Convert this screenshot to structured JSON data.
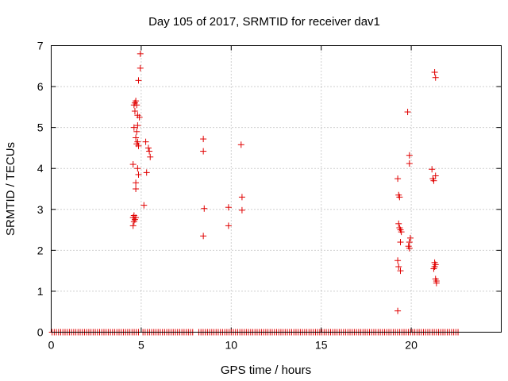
{
  "chart_data": {
    "type": "scatter",
    "title": "Day 105 of 2017, SRMTID for receiver dav1",
    "xlabel": "GPS time / hours",
    "ylabel": "SRMTID / TECUs",
    "xlim": [
      0,
      25
    ],
    "ylim": [
      0,
      7
    ],
    "xticks": [
      0,
      5,
      10,
      15,
      20
    ],
    "yticks": [
      0,
      1,
      2,
      3,
      4,
      5,
      6,
      7
    ],
    "grid": true,
    "marker": "+",
    "color": "#e00000",
    "baseline_zero_ranges": [
      [
        0.05,
        4.9
      ],
      [
        5.1,
        7.9
      ],
      [
        8.2,
        22.7
      ]
    ],
    "series": [
      {
        "name": "dav1",
        "points": [
          [
            4.55,
            2.6
          ],
          [
            4.6,
            2.7
          ],
          [
            4.55,
            2.8
          ],
          [
            4.6,
            2.85
          ],
          [
            4.65,
            2.75
          ],
          [
            4.7,
            2.8
          ],
          [
            4.55,
            4.1
          ],
          [
            4.7,
            3.5
          ],
          [
            4.7,
            3.65
          ],
          [
            4.8,
            4.0
          ],
          [
            4.85,
            3.85
          ],
          [
            4.6,
            5.0
          ],
          [
            4.65,
            5.4
          ],
          [
            4.6,
            5.55
          ],
          [
            4.65,
            5.6
          ],
          [
            4.7,
            5.65
          ],
          [
            4.75,
            5.55
          ],
          [
            4.7,
            4.75
          ],
          [
            4.75,
            4.6
          ],
          [
            4.8,
            4.65
          ],
          [
            4.75,
            4.9
          ],
          [
            4.8,
            5.05
          ],
          [
            4.85,
            4.55
          ],
          [
            4.8,
            5.3
          ],
          [
            4.9,
            5.25
          ],
          [
            4.85,
            6.15
          ],
          [
            4.95,
            6.45
          ],
          [
            4.95,
            6.8
          ],
          [
            5.15,
            3.1
          ],
          [
            5.25,
            4.65
          ],
          [
            5.3,
            3.9
          ],
          [
            5.4,
            4.5
          ],
          [
            5.45,
            4.42
          ],
          [
            5.5,
            4.28
          ],
          [
            8.45,
            4.72
          ],
          [
            8.45,
            4.42
          ],
          [
            8.5,
            3.02
          ],
          [
            8.45,
            2.35
          ],
          [
            9.85,
            3.05
          ],
          [
            9.85,
            2.6
          ],
          [
            10.55,
            4.58
          ],
          [
            10.6,
            3.3
          ],
          [
            10.6,
            2.98
          ],
          [
            19.25,
            3.75
          ],
          [
            19.3,
            3.35
          ],
          [
            19.35,
            3.3
          ],
          [
            19.3,
            2.65
          ],
          [
            19.35,
            2.55
          ],
          [
            19.4,
            2.5
          ],
          [
            19.45,
            2.45
          ],
          [
            19.4,
            2.2
          ],
          [
            19.25,
            1.75
          ],
          [
            19.3,
            1.6
          ],
          [
            19.4,
            1.5
          ],
          [
            19.25,
            0.52
          ],
          [
            19.8,
            5.38
          ],
          [
            19.9,
            4.32
          ],
          [
            19.9,
            4.12
          ],
          [
            19.95,
            2.3
          ],
          [
            19.9,
            2.2
          ],
          [
            19.85,
            2.1
          ],
          [
            19.9,
            2.05
          ],
          [
            21.15,
            3.98
          ],
          [
            21.2,
            3.75
          ],
          [
            21.25,
            3.7
          ],
          [
            21.35,
            3.82
          ],
          [
            21.25,
            1.55
          ],
          [
            21.3,
            1.6
          ],
          [
            21.35,
            1.65
          ],
          [
            21.3,
            1.7
          ],
          [
            21.35,
            1.3
          ],
          [
            21.4,
            1.25
          ],
          [
            21.4,
            1.2
          ],
          [
            21.3,
            6.35
          ],
          [
            21.35,
            6.22
          ]
        ]
      }
    ]
  }
}
